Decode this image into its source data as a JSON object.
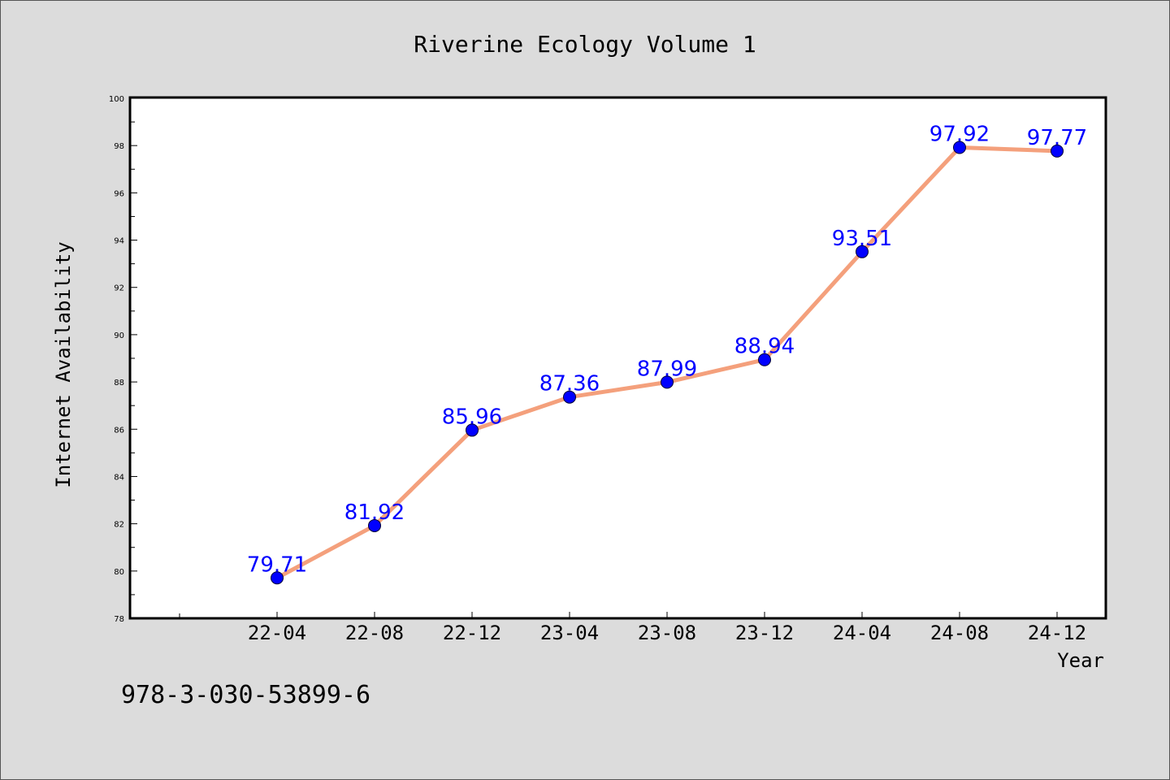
{
  "chart_data": {
    "type": "line",
    "title": "Riverine Ecology Volume 1",
    "xlabel": "Year",
    "ylabel": "Internet Availability",
    "categories": [
      "22-04",
      "22-08",
      "22-12",
      "23-04",
      "23-08",
      "23-12",
      "24-04",
      "24-08",
      "24-12"
    ],
    "series": [
      {
        "values": [
          79.71,
          81.92,
          85.96,
          87.36,
          87.99,
          88.94,
          93.51,
          97.92,
          97.77
        ],
        "labels": [
          "79.71",
          "81.92",
          "85.96",
          "87.36",
          "87.99",
          "88.94",
          "93.51",
          "97.92",
          "97.77"
        ]
      }
    ],
    "ylim": [
      78,
      100
    ],
    "yticks": [
      78,
      80,
      82,
      84,
      86,
      88,
      90,
      92,
      94,
      96,
      98,
      100
    ],
    "grid": false,
    "legend": "none",
    "colors": {
      "line": "#f4a07c",
      "marker": "#0000ff",
      "data_label": "#0000ff",
      "plot_background": "#ffffff",
      "figure_background": "#dcdcdc"
    }
  },
  "footer": {
    "isbn": "978-3-030-53899-6"
  }
}
